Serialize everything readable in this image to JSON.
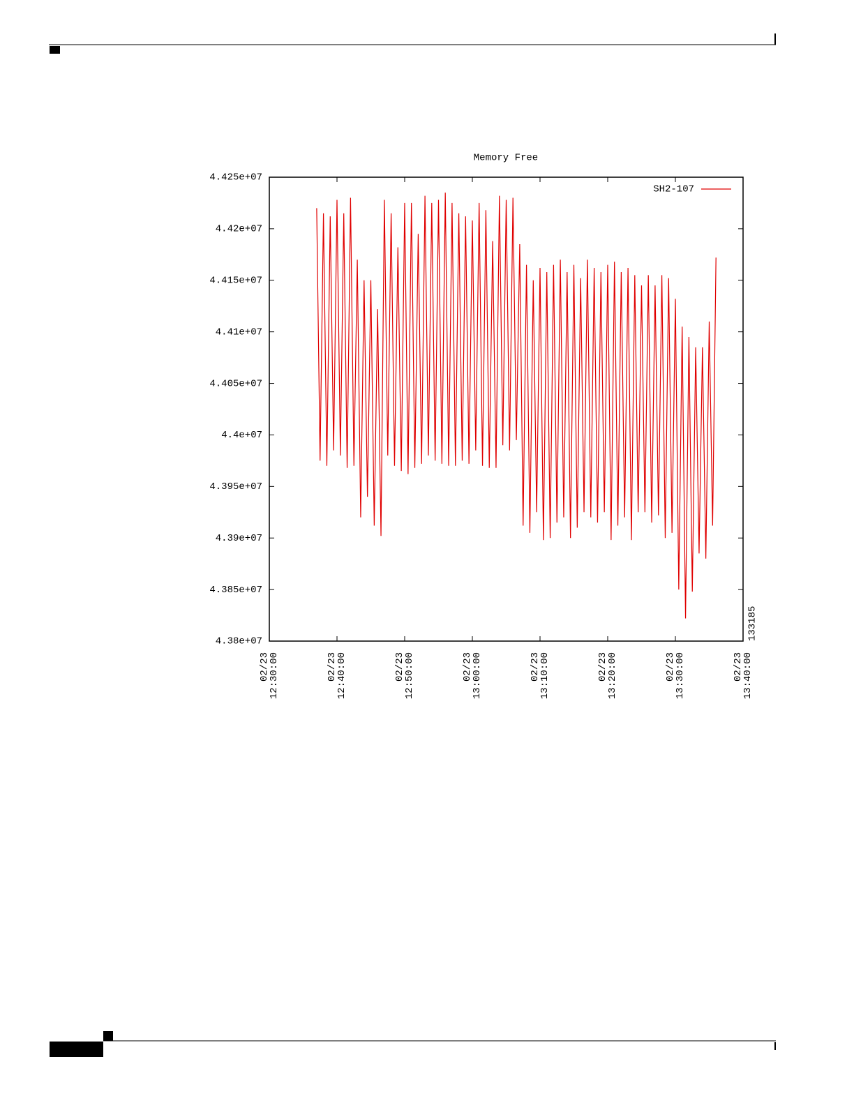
{
  "chart_data": {
    "type": "line",
    "title": "Memory Free",
    "side_label": "133185",
    "x": [
      "02/23 12:37:00",
      "02/23 12:37:30",
      "02/23 12:38:00",
      "02/23 12:38:30",
      "02/23 12:39:00",
      "02/23 12:39:30",
      "02/23 12:40:00",
      "02/23 12:40:30",
      "02/23 12:41:00",
      "02/23 12:41:30",
      "02/23 12:42:00",
      "02/23 12:42:30",
      "02/23 12:43:00",
      "02/23 12:43:30",
      "02/23 12:44:00",
      "02/23 12:44:30",
      "02/23 12:45:00",
      "02/23 12:45:30",
      "02/23 12:46:00",
      "02/23 12:46:30",
      "02/23 12:47:00",
      "02/23 12:47:30",
      "02/23 12:48:00",
      "02/23 12:48:30",
      "02/23 12:49:00",
      "02/23 12:49:30",
      "02/23 12:50:00",
      "02/23 12:50:30",
      "02/23 12:51:00",
      "02/23 12:51:30",
      "02/23 12:52:00",
      "02/23 12:52:30",
      "02/23 12:53:00",
      "02/23 12:53:30",
      "02/23 12:54:00",
      "02/23 12:54:30",
      "02/23 12:55:00",
      "02/23 12:55:30",
      "02/23 12:56:00",
      "02/23 12:56:30",
      "02/23 12:57:00",
      "02/23 12:57:30",
      "02/23 12:58:00",
      "02/23 12:58:30",
      "02/23 12:59:00",
      "02/23 12:59:30",
      "02/23 13:00:00",
      "02/23 13:00:30",
      "02/23 13:01:00",
      "02/23 13:01:30",
      "02/23 13:02:00",
      "02/23 13:02:30",
      "02/23 13:03:00",
      "02/23 13:03:30",
      "02/23 13:04:00",
      "02/23 13:04:30",
      "02/23 13:05:00",
      "02/23 13:05:30",
      "02/23 13:06:00",
      "02/23 13:06:30",
      "02/23 13:07:00",
      "02/23 13:07:30",
      "02/23 13:08:00",
      "02/23 13:08:30",
      "02/23 13:09:00",
      "02/23 13:09:30",
      "02/23 13:10:00",
      "02/23 13:10:30",
      "02/23 13:11:00",
      "02/23 13:11:30",
      "02/23 13:12:00",
      "02/23 13:12:30",
      "02/23 13:13:00",
      "02/23 13:13:30",
      "02/23 13:14:00",
      "02/23 13:14:30",
      "02/23 13:15:00",
      "02/23 13:15:30",
      "02/23 13:16:00",
      "02/23 13:16:30",
      "02/23 13:17:00",
      "02/23 13:17:30",
      "02/23 13:18:00",
      "02/23 13:18:30",
      "02/23 13:19:00",
      "02/23 13:19:30",
      "02/23 13:20:00",
      "02/23 13:20:30",
      "02/23 13:21:00",
      "02/23 13:21:30",
      "02/23 13:22:00",
      "02/23 13:22:30",
      "02/23 13:23:00",
      "02/23 13:23:30",
      "02/23 13:24:00",
      "02/23 13:24:30",
      "02/23 13:25:00",
      "02/23 13:25:30",
      "02/23 13:26:00",
      "02/23 13:26:30",
      "02/23 13:27:00",
      "02/23 13:27:30",
      "02/23 13:28:00",
      "02/23 13:28:30",
      "02/23 13:29:00",
      "02/23 13:29:30",
      "02/23 13:30:00",
      "02/23 13:30:30",
      "02/23 13:31:00",
      "02/23 13:31:30",
      "02/23 13:32:00",
      "02/23 13:32:30",
      "02/23 13:33:00",
      "02/23 13:33:30",
      "02/23 13:34:00",
      "02/23 13:34:30",
      "02/23 13:35:00",
      "02/23 13:35:30",
      "02/23 13:36:00"
    ],
    "series": [
      {
        "name": "SH2-107",
        "color": "#e00000",
        "values": [
          44220000,
          43975000,
          44215000,
          43970000,
          44212000,
          43985000,
          44228000,
          43980000,
          44215000,
          43968000,
          44230000,
          43970000,
          44170000,
          43920000,
          44150000,
          43940000,
          44150000,
          43912000,
          44122000,
          43902000,
          44228000,
          43980000,
          44215000,
          43970000,
          44182000,
          43965000,
          44225000,
          43962000,
          44225000,
          43968000,
          44195000,
          43972000,
          44232000,
          43980000,
          44225000,
          43975000,
          44228000,
          43972000,
          44235000,
          43970000,
          44225000,
          43970000,
          44215000,
          43975000,
          44212000,
          43972000,
          44208000,
          43985000,
          44225000,
          43970000,
          44218000,
          43968000,
          44188000,
          43968000,
          44232000,
          43990000,
          44228000,
          43985000,
          44230000,
          43995000,
          44185000,
          43912000,
          44165000,
          43905000,
          44150000,
          43925000,
          44162000,
          43898000,
          44158000,
          43900000,
          44165000,
          43915000,
          44170000,
          43920000,
          44158000,
          43900000,
          44165000,
          43910000,
          44152000,
          43925000,
          44170000,
          43920000,
          44162000,
          43915000,
          44158000,
          43925000,
          44165000,
          43898000,
          44168000,
          43912000,
          44158000,
          43920000,
          44162000,
          43898000,
          44155000,
          43925000,
          44145000,
          43925000,
          44155000,
          43915000,
          44145000,
          43922000,
          44155000,
          43900000,
          44152000,
          43905000,
          44132000,
          43850000,
          44105000,
          43822000,
          44095000,
          43848000,
          44085000,
          43885000,
          44085000,
          43880000,
          44110000,
          43912000,
          44172000
        ]
      }
    ],
    "xlim": [
      "02/23 12:30:00",
      "02/23 13:40:00"
    ],
    "xticks": [
      "02/23 12:30:00",
      "02/23 12:40:00",
      "02/23 12:50:00",
      "02/23 13:00:00",
      "02/23 13:10:00",
      "02/23 13:20:00",
      "02/23 13:30:00",
      "02/23 13:40:00"
    ],
    "ylim": [
      43800000,
      44250000
    ],
    "yticks": [
      {
        "value": 43800000,
        "label": "4.38e+07"
      },
      {
        "value": 43850000,
        "label": "4.385e+07"
      },
      {
        "value": 43900000,
        "label": "4.39e+07"
      },
      {
        "value": 43950000,
        "label": "4.395e+07"
      },
      {
        "value": 44000000,
        "label": "4.4e+07"
      },
      {
        "value": 44050000,
        "label": "4.405e+07"
      },
      {
        "value": 44100000,
        "label": "4.41e+07"
      },
      {
        "value": 44150000,
        "label": "4.415e+07"
      },
      {
        "value": 44200000,
        "label": "4.42e+07"
      },
      {
        "value": 44250000,
        "label": "4.425e+07"
      }
    ],
    "grid": false,
    "legend": "upper right"
  }
}
